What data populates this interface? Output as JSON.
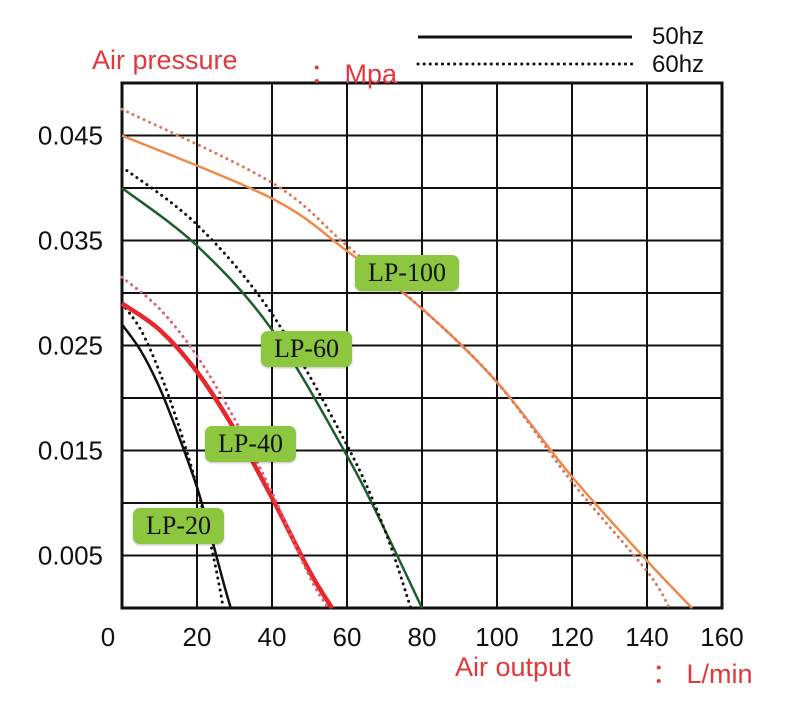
{
  "chart_data": {
    "type": "line",
    "title": "",
    "ylabel": "Air pressure",
    "y_unit": "： Mpa",
    "xlabel": "Air output",
    "x_unit": "： L/min",
    "xlim": [
      0,
      160
    ],
    "ylim": [
      0,
      0.05
    ],
    "x_ticks": [
      "0",
      "20",
      "40",
      "60",
      "80",
      "100",
      "120",
      "140",
      "160"
    ],
    "y_ticks": [
      "0.045",
      "0.035",
      "0.025",
      "0.015",
      "0.005"
    ],
    "y_tick_values": [
      0.045,
      0.035,
      0.025,
      0.015,
      0.005
    ],
    "grid": true,
    "legend": [
      {
        "label": "50hz",
        "style": "solid"
      },
      {
        "label": "60hz",
        "style": "dotted"
      }
    ],
    "series": [
      {
        "name": "LP-20",
        "frequency": "50hz",
        "style": "solid",
        "color": "#111111",
        "x": [
          0,
          5,
          10,
          15,
          20,
          24,
          27,
          29
        ],
        "y": [
          0.027,
          0.0245,
          0.021,
          0.0165,
          0.0115,
          0.0065,
          0.0025,
          0.0
        ]
      },
      {
        "name": "LP-20",
        "frequency": "60hz",
        "style": "dotted",
        "color": "#111111",
        "x": [
          0,
          5,
          10,
          15,
          20,
          24,
          26,
          27
        ],
        "y": [
          0.029,
          0.0265,
          0.0225,
          0.0175,
          0.0115,
          0.0055,
          0.002,
          0.0
        ]
      },
      {
        "name": "LP-40",
        "frequency": "50hz",
        "style": "solid",
        "color": "#e8262b",
        "x": [
          0,
          10,
          20,
          30,
          40,
          50,
          56
        ],
        "y": [
          0.029,
          0.0265,
          0.0225,
          0.017,
          0.0105,
          0.0035,
          0.0
        ]
      },
      {
        "name": "LP-40",
        "frequency": "60hz",
        "style": "dotted",
        "color": "#e06070",
        "x": [
          0,
          10,
          20,
          30,
          40,
          50,
          55
        ],
        "y": [
          0.0315,
          0.0285,
          0.024,
          0.018,
          0.011,
          0.003,
          0.0
        ]
      },
      {
        "name": "LP-60",
        "frequency": "50hz",
        "style": "solid",
        "color": "#1e5e2e",
        "x": [
          0,
          20,
          40,
          60,
          70,
          80
        ],
        "y": [
          0.04,
          0.0345,
          0.0265,
          0.0145,
          0.0075,
          0.0
        ]
      },
      {
        "name": "LP-60",
        "frequency": "60hz",
        "style": "dotted",
        "color": "#111111",
        "x": [
          0,
          20,
          40,
          60,
          70,
          77
        ],
        "y": [
          0.042,
          0.0365,
          0.028,
          0.0155,
          0.0075,
          0.0
        ]
      },
      {
        "name": "LP-100",
        "frequency": "50hz",
        "style": "solid",
        "color": "#f08a4b",
        "x": [
          0,
          40,
          60,
          80,
          100,
          120,
          140,
          152
        ],
        "y": [
          0.045,
          0.039,
          0.034,
          0.0285,
          0.0215,
          0.0125,
          0.0045,
          0.0
        ]
      },
      {
        "name": "LP-100",
        "frequency": "60hz",
        "style": "dotted",
        "color": "#d87a60",
        "x": [
          0,
          40,
          60,
          80,
          100,
          120,
          140,
          146
        ],
        "y": [
          0.0475,
          0.0405,
          0.0345,
          0.0285,
          0.0215,
          0.012,
          0.0035,
          0.0
        ]
      }
    ],
    "annotations": [
      {
        "text": "LP-20",
        "series": "LP-20"
      },
      {
        "text": "LP-40",
        "series": "LP-40"
      },
      {
        "text": "LP-60",
        "series": "LP-60"
      },
      {
        "text": "LP-100",
        "series": "LP-100"
      }
    ]
  }
}
